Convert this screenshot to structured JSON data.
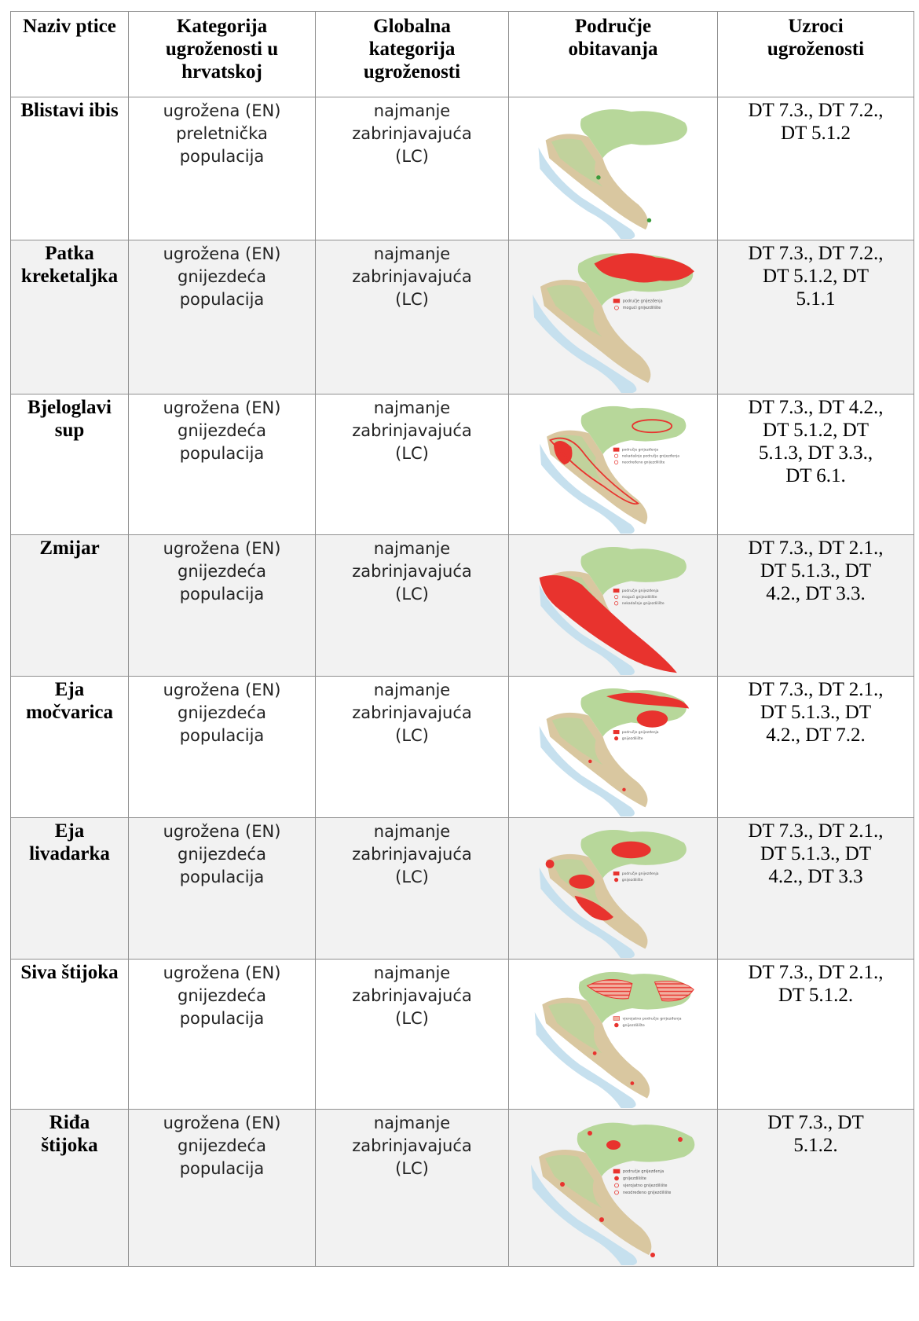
{
  "table": {
    "headers": [
      [
        "Naziv ptice"
      ],
      [
        "Kategorija",
        "ugroženosti u",
        "hrvatskoj"
      ],
      [
        "Globalna",
        "kategorija",
        "ugroženosti"
      ],
      [
        "Područje",
        "obitavanja"
      ],
      [
        "Uzroci",
        "ugroženosti"
      ]
    ],
    "rows": [
      {
        "name": [
          "Blistavi ibis"
        ],
        "national": [
          "ugrožena (EN)",
          "preletnička",
          "populacija"
        ],
        "global": [
          "najmanje",
          "zabrinjavajuća",
          "(LC)"
        ],
        "causes": [
          "DT 7.3., DT 7.2.,",
          "DT 5.1.2"
        ],
        "map": {
          "type": "points",
          "legend": []
        }
      },
      {
        "name": [
          "Patka",
          "kreketaljka"
        ],
        "national": [
          "ugrožena (EN)",
          "gnijezdeća",
          "populacija"
        ],
        "global": [
          "najmanje",
          "zabrinjavajuća",
          "(LC)"
        ],
        "causes": [
          "DT 7.3., DT 7.2.,",
          "DT 5.1.2, DT",
          "5.1.1"
        ],
        "map": {
          "type": "north",
          "legend": [
            "područje gnijezđenja",
            "mogući gnijezdilište"
          ]
        }
      },
      {
        "name": [
          "Bjeloglavi",
          "sup"
        ],
        "national": [
          "ugrožena (EN)",
          "gnijezdeća",
          "populacija"
        ],
        "global": [
          "najmanje",
          "zabrinjavajuća",
          "(LC)"
        ],
        "causes": [
          "DT 7.3., DT 4.2.,",
          "DT 5.1.2, DT",
          "5.1.3, DT 3.3.,",
          "DT 6.1."
        ],
        "map": {
          "type": "coast-outline",
          "legend": [
            "područje gnijezđenja",
            "nekadašnje područje gnijezđenja",
            "neodređeno gnijezdilište"
          ]
        }
      },
      {
        "name": [
          "Zmijar"
        ],
        "national": [
          "ugrožena (EN)",
          "gnijezdeća",
          "populacija"
        ],
        "global": [
          "najmanje",
          "zabrinjavajuća",
          "(LC)"
        ],
        "causes": [
          "DT 7.3., DT 2.1.,",
          "DT 5.1.3., DT",
          "4.2., DT 3.3."
        ],
        "map": {
          "type": "south-fill",
          "legend": [
            "područje gnijezđenja",
            "mogući gnijezdilište",
            "nekadašnje gnijezdilište"
          ]
        }
      },
      {
        "name": [
          "Eja",
          "močvarica"
        ],
        "national": [
          "ugrožena (EN)",
          "gnijezdeća",
          "populacija"
        ],
        "global": [
          "najmanje",
          "zabrinjavajuća",
          "(LC)"
        ],
        "causes": [
          "DT 7.3., DT 2.1.,",
          "DT 5.1.3., DT",
          "4.2., DT 7.2."
        ],
        "map": {
          "type": "north-blobs",
          "legend": [
            "područje gnijezđenja",
            "gnijezdilište"
          ]
        }
      },
      {
        "name": [
          "Eja",
          "livadarka"
        ],
        "national": [
          "ugrožena (EN)",
          "gnijezdeća",
          "populacija"
        ],
        "global": [
          "najmanje",
          "zabrinjavajuća",
          "(LC)"
        ],
        "causes": [
          "DT 7.3., DT 2.1.,",
          "DT 5.1.3., DT",
          "4.2., DT 3.3"
        ],
        "map": {
          "type": "lika",
          "legend": [
            "područje gnijezđenja",
            "gnijezdilište"
          ]
        }
      },
      {
        "name": [
          "Siva štijoka"
        ],
        "national": [
          "ugrožena (EN)",
          "gnijezdeća",
          "populacija"
        ],
        "global": [
          "najmanje",
          "zabrinjavajuća",
          "(LC)"
        ],
        "causes": [
          "DT 7.3., DT 2.1.,",
          "DT 5.1.2."
        ],
        "map": {
          "type": "hatched",
          "legend": [
            "vjerojatno područje gnijezđenja",
            "gnijezdilište"
          ]
        }
      },
      {
        "name": [
          "Riđa",
          "štijoka"
        ],
        "national": [
          "ugrožena (EN)",
          "gnijezdeća",
          "populacija"
        ],
        "global": [
          "najmanje",
          "zabrinjavajuća",
          "(LC)"
        ],
        "causes": [
          "DT 7.3., DT",
          "5.1.2."
        ],
        "map": {
          "type": "dots",
          "legend": [
            "područje gnijezđenja",
            "gnijezdilište",
            "vjerojatno gnijezdilište",
            "neodređeno gnijezdilište"
          ]
        }
      }
    ]
  },
  "colors": {
    "border": "#8f8f8f",
    "row_alt": "#f2f2f2",
    "map_land": "#b7d79a",
    "map_coast": "#d9c7a0",
    "map_sea": "#c6e0ee",
    "range_red": "#e8332e"
  }
}
